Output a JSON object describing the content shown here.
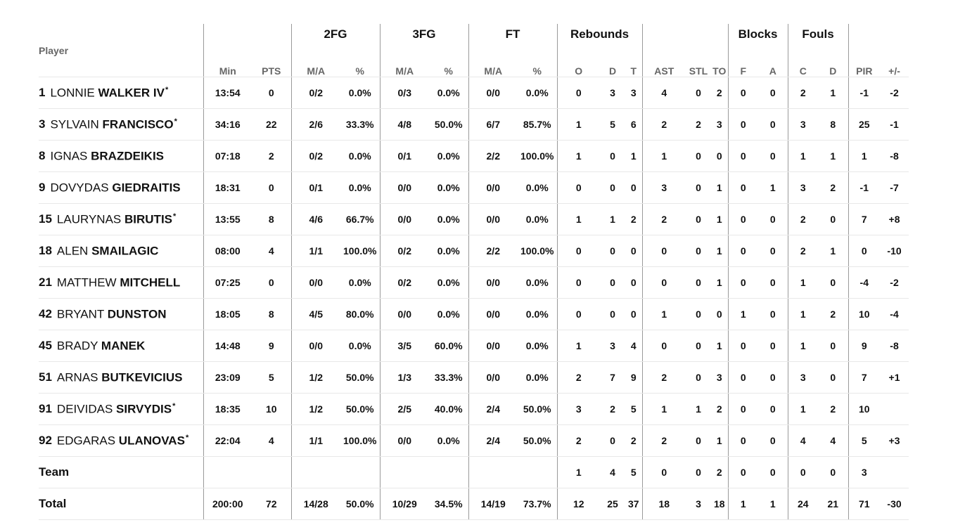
{
  "groups": {
    "fg2": "2FG",
    "fg3": "3FG",
    "ft": "FT",
    "reb": "Rebounds",
    "blk": "Blocks",
    "fouls": "Fouls"
  },
  "headers": {
    "player": "Player",
    "min": "Min",
    "pts": "PTS",
    "fg2_ma": "M/A",
    "fg2_pct": "%",
    "fg3_ma": "M/A",
    "fg3_pct": "%",
    "ft_ma": "M/A",
    "ft_pct": "%",
    "o": "O",
    "d": "D",
    "t": "T",
    "ast": "AST",
    "stl": "STL",
    "to": "TO",
    "f": "F",
    "a": "A",
    "c": "C",
    "fd": "D",
    "pir": "PIR",
    "pm": "+/-"
  },
  "players": [
    {
      "num": "1",
      "first": "LONNIE",
      "last": "WALKER IV",
      "star": "*",
      "min": "13:54",
      "pts": "0",
      "fg2_ma": "0/2",
      "fg2_pct": "0.0%",
      "fg3_ma": "0/3",
      "fg3_pct": "0.0%",
      "ft_ma": "0/0",
      "ft_pct": "0.0%",
      "o": "0",
      "d": "3",
      "t": "3",
      "ast": "4",
      "stl": "0",
      "to": "2",
      "f": "0",
      "a": "0",
      "c": "2",
      "fd": "1",
      "pir": "-1",
      "pm": "-2"
    },
    {
      "num": "3",
      "first": "SYLVAIN",
      "last": "FRANCISCO",
      "star": "*",
      "min": "34:16",
      "pts": "22",
      "fg2_ma": "2/6",
      "fg2_pct": "33.3%",
      "fg3_ma": "4/8",
      "fg3_pct": "50.0%",
      "ft_ma": "6/7",
      "ft_pct": "85.7%",
      "o": "1",
      "d": "5",
      "t": "6",
      "ast": "2",
      "stl": "2",
      "to": "3",
      "f": "0",
      "a": "0",
      "c": "3",
      "fd": "8",
      "pir": "25",
      "pm": "-1"
    },
    {
      "num": "8",
      "first": "IGNAS",
      "last": "BRAZDEIKIS",
      "star": "",
      "min": "07:18",
      "pts": "2",
      "fg2_ma": "0/2",
      "fg2_pct": "0.0%",
      "fg3_ma": "0/1",
      "fg3_pct": "0.0%",
      "ft_ma": "2/2",
      "ft_pct": "100.0%",
      "o": "1",
      "d": "0",
      "t": "1",
      "ast": "1",
      "stl": "0",
      "to": "0",
      "f": "0",
      "a": "0",
      "c": "1",
      "fd": "1",
      "pir": "1",
      "pm": "-8"
    },
    {
      "num": "9",
      "first": "DOVYDAS",
      "last": "GIEDRAITIS",
      "star": "",
      "min": "18:31",
      "pts": "0",
      "fg2_ma": "0/1",
      "fg2_pct": "0.0%",
      "fg3_ma": "0/0",
      "fg3_pct": "0.0%",
      "ft_ma": "0/0",
      "ft_pct": "0.0%",
      "o": "0",
      "d": "0",
      "t": "0",
      "ast": "3",
      "stl": "0",
      "to": "1",
      "f": "0",
      "a": "1",
      "c": "3",
      "fd": "2",
      "pir": "-1",
      "pm": "-7"
    },
    {
      "num": "15",
      "first": "LAURYNAS",
      "last": "BIRUTIS",
      "star": "*",
      "min": "13:55",
      "pts": "8",
      "fg2_ma": "4/6",
      "fg2_pct": "66.7%",
      "fg3_ma": "0/0",
      "fg3_pct": "0.0%",
      "ft_ma": "0/0",
      "ft_pct": "0.0%",
      "o": "1",
      "d": "1",
      "t": "2",
      "ast": "2",
      "stl": "0",
      "to": "1",
      "f": "0",
      "a": "0",
      "c": "2",
      "fd": "0",
      "pir": "7",
      "pm": "+8"
    },
    {
      "num": "18",
      "first": "ALEN",
      "last": "SMAILAGIC",
      "star": "",
      "min": "08:00",
      "pts": "4",
      "fg2_ma": "1/1",
      "fg2_pct": "100.0%",
      "fg3_ma": "0/2",
      "fg3_pct": "0.0%",
      "ft_ma": "2/2",
      "ft_pct": "100.0%",
      "o": "0",
      "d": "0",
      "t": "0",
      "ast": "0",
      "stl": "0",
      "to": "1",
      "f": "0",
      "a": "0",
      "c": "2",
      "fd": "1",
      "pir": "0",
      "pm": "-10"
    },
    {
      "num": "21",
      "first": "MATTHEW",
      "last": "MITCHELL",
      "star": "",
      "min": "07:25",
      "pts": "0",
      "fg2_ma": "0/0",
      "fg2_pct": "0.0%",
      "fg3_ma": "0/2",
      "fg3_pct": "0.0%",
      "ft_ma": "0/0",
      "ft_pct": "0.0%",
      "o": "0",
      "d": "0",
      "t": "0",
      "ast": "0",
      "stl": "0",
      "to": "1",
      "f": "0",
      "a": "0",
      "c": "1",
      "fd": "0",
      "pir": "-4",
      "pm": "-2"
    },
    {
      "num": "42",
      "first": "BRYANT",
      "last": "DUNSTON",
      "star": "",
      "min": "18:05",
      "pts": "8",
      "fg2_ma": "4/5",
      "fg2_pct": "80.0%",
      "fg3_ma": "0/0",
      "fg3_pct": "0.0%",
      "ft_ma": "0/0",
      "ft_pct": "0.0%",
      "o": "0",
      "d": "0",
      "t": "0",
      "ast": "1",
      "stl": "0",
      "to": "0",
      "f": "1",
      "a": "0",
      "c": "1",
      "fd": "2",
      "pir": "10",
      "pm": "-4"
    },
    {
      "num": "45",
      "first": "BRADY",
      "last": "MANEK",
      "star": "",
      "min": "14:48",
      "pts": "9",
      "fg2_ma": "0/0",
      "fg2_pct": "0.0%",
      "fg3_ma": "3/5",
      "fg3_pct": "60.0%",
      "ft_ma": "0/0",
      "ft_pct": "0.0%",
      "o": "1",
      "d": "3",
      "t": "4",
      "ast": "0",
      "stl": "0",
      "to": "1",
      "f": "0",
      "a": "0",
      "c": "1",
      "fd": "0",
      "pir": "9",
      "pm": "-8"
    },
    {
      "num": "51",
      "first": "ARNAS",
      "last": "BUTKEVICIUS",
      "star": "",
      "min": "23:09",
      "pts": "5",
      "fg2_ma": "1/2",
      "fg2_pct": "50.0%",
      "fg3_ma": "1/3",
      "fg3_pct": "33.3%",
      "ft_ma": "0/0",
      "ft_pct": "0.0%",
      "o": "2",
      "d": "7",
      "t": "9",
      "ast": "2",
      "stl": "0",
      "to": "3",
      "f": "0",
      "a": "0",
      "c": "3",
      "fd": "0",
      "pir": "7",
      "pm": "+1"
    },
    {
      "num": "91",
      "first": "DEIVIDAS",
      "last": "SIRVYDIS",
      "star": "*",
      "min": "18:35",
      "pts": "10",
      "fg2_ma": "1/2",
      "fg2_pct": "50.0%",
      "fg3_ma": "2/5",
      "fg3_pct": "40.0%",
      "ft_ma": "2/4",
      "ft_pct": "50.0%",
      "o": "3",
      "d": "2",
      "t": "5",
      "ast": "1",
      "stl": "1",
      "to": "2",
      "f": "0",
      "a": "0",
      "c": "1",
      "fd": "2",
      "pir": "10",
      "pm": ""
    },
    {
      "num": "92",
      "first": "EDGARAS",
      "last": "ULANOVAS",
      "star": "*",
      "min": "22:04",
      "pts": "4",
      "fg2_ma": "1/1",
      "fg2_pct": "100.0%",
      "fg3_ma": "0/0",
      "fg3_pct": "0.0%",
      "ft_ma": "2/4",
      "ft_pct": "50.0%",
      "o": "2",
      "d": "0",
      "t": "2",
      "ast": "2",
      "stl": "0",
      "to": "1",
      "f": "0",
      "a": "0",
      "c": "4",
      "fd": "4",
      "pir": "5",
      "pm": "+3"
    }
  ],
  "team_row": {
    "label": "Team",
    "min": "",
    "pts": "",
    "fg2_ma": "",
    "fg2_pct": "",
    "fg3_ma": "",
    "fg3_pct": "",
    "ft_ma": "",
    "ft_pct": "",
    "o": "1",
    "d": "4",
    "t": "5",
    "ast": "0",
    "stl": "0",
    "to": "2",
    "f": "0",
    "a": "0",
    "c": "0",
    "fd": "0",
    "pir": "3",
    "pm": ""
  },
  "total_row": {
    "label": "Total",
    "min": "200:00",
    "pts": "72",
    "fg2_ma": "14/28",
    "fg2_pct": "50.0%",
    "fg3_ma": "10/29",
    "fg3_pct": "34.5%",
    "ft_ma": "14/19",
    "ft_pct": "73.7%",
    "o": "12",
    "d": "25",
    "t": "37",
    "ast": "18",
    "stl": "3",
    "to": "18",
    "f": "1",
    "a": "1",
    "c": "24",
    "fd": "21",
    "pir": "71",
    "pm": "-30"
  }
}
